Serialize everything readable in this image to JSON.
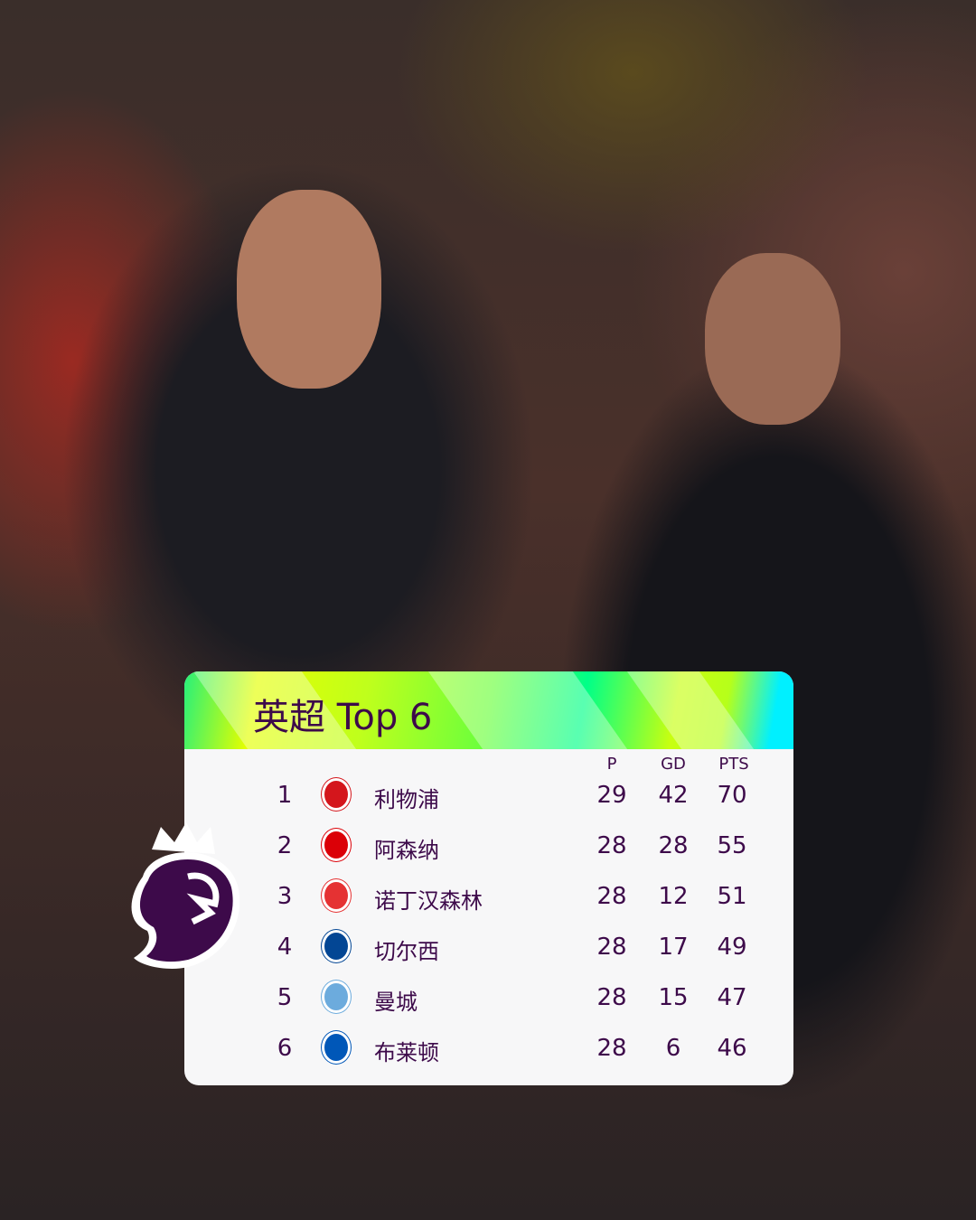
{
  "card": {
    "title": "英超 Top 6",
    "columns": [
      "P",
      "GD",
      "PTS"
    ]
  },
  "rows": [
    {
      "pos": "1",
      "team": "利物浦",
      "p": "29",
      "gd": "42",
      "pts": "70",
      "crest": "liverpool-crest-icon",
      "color": "#d4161c"
    },
    {
      "pos": "2",
      "team": "阿森纳",
      "p": "28",
      "gd": "28",
      "pts": "55",
      "crest": "arsenal-crest-icon",
      "color": "#db0007"
    },
    {
      "pos": "3",
      "team": "诺丁汉森林",
      "p": "28",
      "gd": "12",
      "pts": "51",
      "crest": "nottingham-forest-crest-icon",
      "color": "#e53233"
    },
    {
      "pos": "4",
      "team": "切尔西",
      "p": "28",
      "gd": "17",
      "pts": "49",
      "crest": "chelsea-crest-icon",
      "color": "#034694"
    },
    {
      "pos": "5",
      "team": "曼城",
      "p": "28",
      "gd": "15",
      "pts": "47",
      "crest": "manchester-city-crest-icon",
      "color": "#6cabdd"
    },
    {
      "pos": "6",
      "team": "布莱顿",
      "p": "28",
      "gd": "6",
      "pts": "46",
      "crest": "brighton-crest-icon",
      "color": "#0057b8"
    }
  ],
  "colors": {
    "text": "#3d0a4a",
    "logo": "#3d0a4a"
  }
}
